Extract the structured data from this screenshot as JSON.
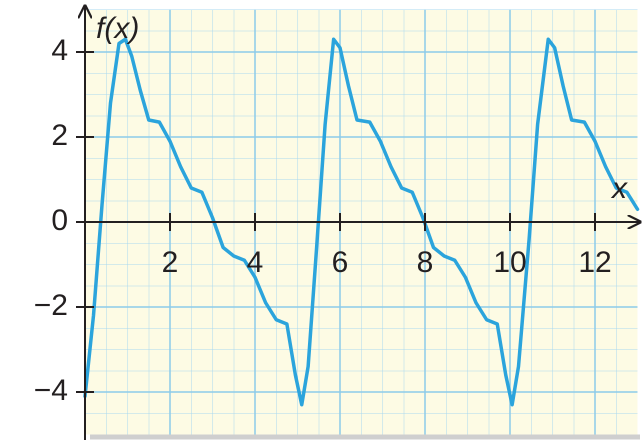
{
  "chart_data": {
    "type": "line",
    "x_label": "x",
    "y_label": "f(x)",
    "xlim": [
      0,
      13
    ],
    "ylim": [
      -5,
      5
    ],
    "xticks": [
      2,
      4,
      6,
      8,
      10,
      12
    ],
    "yticks": [
      {
        "value": -4,
        "label": "−4"
      },
      {
        "value": -2,
        "label": "−2"
      },
      0,
      2,
      4
    ],
    "grid": true,
    "series": [
      {
        "color": "#2ba4dc",
        "x": [
          0,
          0.2,
          0.4,
          0.6,
          0.8,
          0.95,
          1.1,
          1.3,
          1.5,
          1.75,
          2.0,
          2.25,
          2.5,
          2.75,
          3.0,
          3.25,
          3.5,
          3.75,
          4.0,
          4.25,
          4.5,
          4.75,
          4.95,
          5.1,
          5.25,
          5.45,
          5.65,
          5.85,
          6.0,
          6.2,
          6.4,
          6.7,
          6.95,
          7.2,
          7.45,
          7.7,
          7.95,
          8.2,
          8.45,
          8.7,
          8.95,
          9.2,
          9.45,
          9.7,
          9.9,
          10.05,
          10.2,
          10.45,
          10.65,
          10.9,
          11.05,
          11.25,
          11.45,
          11.75,
          12.0,
          12.25,
          12.5,
          12.75,
          13.0
        ],
        "values": [
          -4.1,
          -2.2,
          0.4,
          2.8,
          4.2,
          4.3,
          3.9,
          3.1,
          2.4,
          2.35,
          1.9,
          1.3,
          0.8,
          0.7,
          0.1,
          -0.6,
          -0.8,
          -0.9,
          -1.3,
          -1.9,
          -2.3,
          -2.4,
          -3.6,
          -4.3,
          -3.4,
          -0.6,
          2.3,
          4.3,
          4.1,
          3.2,
          2.4,
          2.35,
          1.9,
          1.3,
          0.8,
          0.7,
          0.1,
          -0.6,
          -0.8,
          -0.9,
          -1.3,
          -1.9,
          -2.3,
          -2.4,
          -3.6,
          -4.3,
          -3.4,
          -0.4,
          2.3,
          4.3,
          4.1,
          3.2,
          2.4,
          2.35,
          1.9,
          1.3,
          0.8,
          0.7,
          0.3
        ]
      }
    ]
  }
}
